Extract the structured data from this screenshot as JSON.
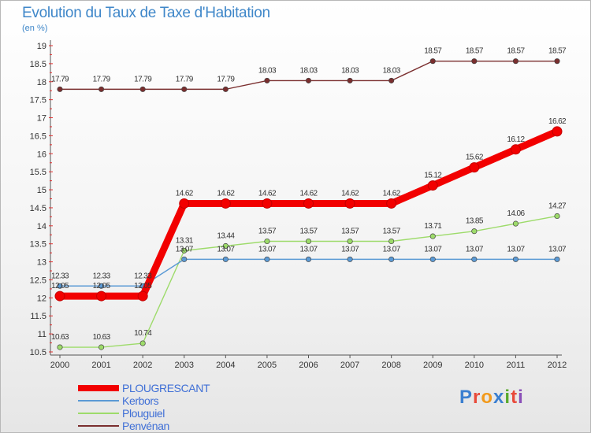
{
  "title": "Evolution du Taux de Taxe d'Habitation",
  "subtitle": "(en %)",
  "logo_text": [
    "P",
    "r",
    "o",
    "x",
    "i",
    "t",
    "i"
  ],
  "logo_colors": [
    "#3b7fd0",
    "#e84a3a",
    "#f29a1c",
    "#3b7fd0",
    "#5aaa2e",
    "#e84a3a",
    "#8a4fb8"
  ],
  "chart_data": {
    "type": "line",
    "title": "Evolution du Taux de Taxe d'Habitation",
    "ylabel": "(en %)",
    "xlabel": "",
    "x": [
      "2000",
      "2001",
      "2002",
      "2003",
      "2004",
      "2005",
      "2006",
      "2007",
      "2008",
      "2009",
      "2010",
      "2011",
      "2012"
    ],
    "ylim": [
      10.5,
      19
    ],
    "yticks": [
      "10.5",
      "11",
      "11.5",
      "12",
      "12.5",
      "13",
      "13.5",
      "14",
      "14.5",
      "15",
      "15.5",
      "16",
      "16.5",
      "17",
      "17.5",
      "18",
      "18.5",
      "19"
    ],
    "grid": false,
    "legend_position": "bottom-left",
    "series": [
      {
        "name": "PLOUGRESCANT",
        "color": "#f20000",
        "values": [
          12.05,
          12.05,
          12.05,
          14.62,
          14.62,
          14.62,
          14.62,
          14.62,
          14.62,
          15.12,
          15.62,
          16.12,
          16.62
        ],
        "labels": [
          "12.05",
          "12.05",
          "12.05",
          "14.62",
          "14.62",
          "14.62",
          "14.62",
          "14.62",
          "14.62",
          "15.12",
          "15.62",
          "16.12",
          "16.62"
        ]
      },
      {
        "name": "Kerbors",
        "color": "#5b9ad5",
        "values": [
          12.33,
          12.33,
          12.33,
          13.07,
          13.07,
          13.07,
          13.07,
          13.07,
          13.07,
          13.07,
          13.07,
          13.07,
          13.07
        ],
        "labels": [
          "12.33",
          "12.33",
          "12.33",
          "13.07",
          "13.07",
          "13.07",
          "13.07",
          "13.07",
          "13.07",
          "13.07",
          "13.07",
          "13.07",
          "13.07"
        ]
      },
      {
        "name": "Plouguiel",
        "color": "#9ddb6a",
        "values": [
          10.63,
          10.63,
          10.74,
          13.31,
          13.44,
          13.57,
          13.57,
          13.57,
          13.57,
          13.71,
          13.85,
          14.06,
          14.27
        ],
        "labels": [
          "10.63",
          "10.63",
          "10.74",
          "13.31",
          "13.44",
          "13.57",
          "13.57",
          "13.57",
          "13.57",
          "13.71",
          "13.85",
          "14.06",
          "14.27"
        ]
      },
      {
        "name": "Penvénan",
        "color": "#7a2e2e",
        "values": [
          17.79,
          17.79,
          17.79,
          17.79,
          17.79,
          18.03,
          18.03,
          18.03,
          18.03,
          18.57,
          18.57,
          18.57,
          18.57
        ],
        "labels": [
          "17.79",
          "17.79",
          "17.79",
          "17.79",
          "17.79",
          "18.03",
          "18.03",
          "18.03",
          "18.03",
          "18.57",
          "18.57",
          "18.57",
          "18.57"
        ]
      }
    ]
  }
}
